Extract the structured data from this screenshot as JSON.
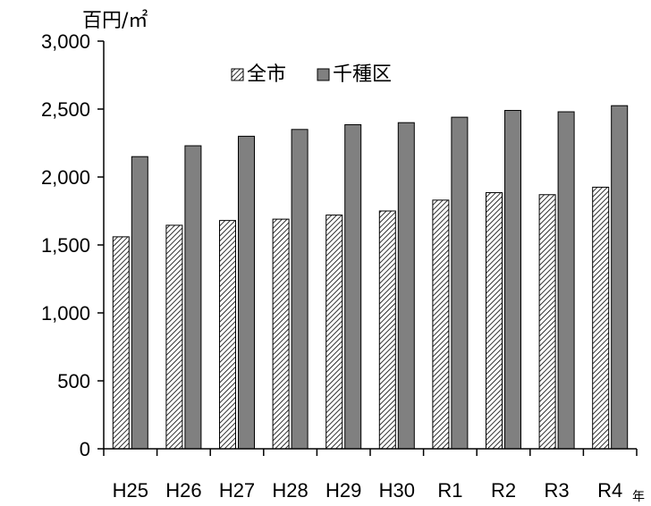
{
  "chart_data": {
    "type": "bar",
    "ylabel": "百円/㎡",
    "xlabel": "年",
    "categories": [
      "H25",
      "H26",
      "H27",
      "H28",
      "H29",
      "H30",
      "R1",
      "R2",
      "R3",
      "R4"
    ],
    "series": [
      {
        "name": "全市",
        "values": [
          1560,
          1645,
          1680,
          1690,
          1720,
          1750,
          1830,
          1885,
          1870,
          1925
        ],
        "pattern": "diagonal-hatch"
      },
      {
        "name": "千種区",
        "values": [
          2150,
          2230,
          2300,
          2350,
          2385,
          2400,
          2440,
          2490,
          2480,
          2525
        ],
        "color": "#808080"
      }
    ],
    "ylim": [
      0,
      3000
    ],
    "yticks": [
      0,
      500,
      1000,
      1500,
      2000,
      2500,
      3000
    ],
    "ytick_labels": [
      "0",
      "500",
      "1,000",
      "1,500",
      "2,000",
      "2,500",
      "3,000"
    ],
    "legend_position": "top-center",
    "grid": false
  }
}
